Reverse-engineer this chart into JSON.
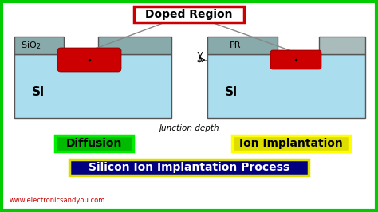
{
  "bg_color": "#ffffff",
  "border_color": "#00cc00",
  "title": "Silicon Ion Implantation Process",
  "title_bg": "#000080",
  "title_fg": "#ffffff",
  "doped_label": "Doped Region",
  "doped_border": "#cc0000",
  "diffusion_label": "Diffusion",
  "diffusion_bg": "#00bb00",
  "diffusion_border": "#00ee00",
  "ion_label": "Ion Implantation",
  "ion_bg": "#dddd00",
  "ion_border": "#ffff00",
  "junction_label": "Junction depth",
  "watermark": "www.electronicsandyou.com",
  "watermark_color": "#cc0000",
  "si_color": "#aadeee",
  "sio2_color": "#88aaaa",
  "pr_color": "#88aaaa",
  "pr_right_color": "#aabbbb",
  "doped_region_color": "#cc0000",
  "box_border": "#555555",
  "line_color": "#888888",
  "title_border": "#dddd00"
}
